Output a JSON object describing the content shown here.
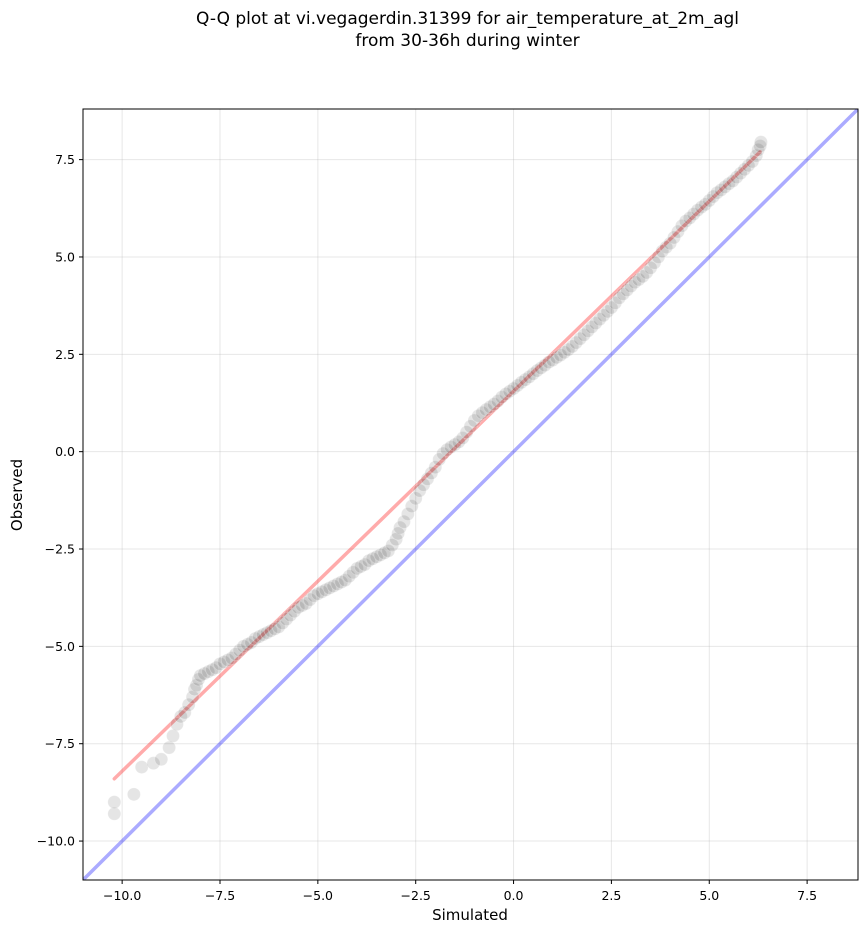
{
  "chart_data": {
    "type": "scatter",
    "title_line1": "Q-Q plot at vi.vegagerdin.31399 for air_temperature_at_2m_agl",
    "title_line2": "from 30-36h during winter",
    "xlabel": "Simulated",
    "ylabel": "Observed",
    "xlim": [
      -11.0,
      8.8
    ],
    "ylim": [
      -11.0,
      8.8
    ],
    "xticks": [
      -10.0,
      -7.5,
      -5.0,
      -2.5,
      0.0,
      2.5,
      5.0,
      7.5
    ],
    "yticks": [
      -10.0,
      -7.5,
      -5.0,
      -2.5,
      0.0,
      2.5,
      5.0,
      7.5
    ],
    "xtick_labels": [
      "−10.0",
      "−7.5",
      "−5.0",
      "−2.5",
      "0.0",
      "2.5",
      "5.0",
      "7.5"
    ],
    "ytick_labels": [
      "−10.0",
      "−7.5",
      "−5.0",
      "−2.5",
      "0.0",
      "2.5",
      "5.0",
      "7.5"
    ],
    "grid": true,
    "fit_line": {
      "color": "#ff0000",
      "x": [
        -10.2,
        6.3
      ],
      "y": [
        -8.4,
        7.7
      ]
    },
    "identity_line": {
      "color": "#0000ff",
      "x": [
        -11.0,
        8.8
      ],
      "y": [
        -11.0,
        8.8
      ]
    },
    "points_color": "#000000",
    "points": [
      [
        -10.2,
        -9.3
      ],
      [
        -10.2,
        -9.0
      ],
      [
        -9.7,
        -8.8
      ],
      [
        -9.5,
        -8.1
      ],
      [
        -9.2,
        -8.0
      ],
      [
        -9.0,
        -7.9
      ],
      [
        -8.8,
        -7.6
      ],
      [
        -8.7,
        -7.3
      ],
      [
        -8.6,
        -7.0
      ],
      [
        -8.5,
        -6.8
      ],
      [
        -8.4,
        -6.7
      ],
      [
        -8.3,
        -6.5
      ],
      [
        -8.2,
        -6.3
      ],
      [
        -8.15,
        -6.1
      ],
      [
        -8.1,
        -6.0
      ],
      [
        -8.05,
        -5.85
      ],
      [
        -8.0,
        -5.75
      ],
      [
        -7.9,
        -5.7
      ],
      [
        -7.8,
        -5.65
      ],
      [
        -7.7,
        -5.6
      ],
      [
        -7.6,
        -5.55
      ],
      [
        -7.5,
        -5.45
      ],
      [
        -7.4,
        -5.4
      ],
      [
        -7.3,
        -5.35
      ],
      [
        -7.2,
        -5.3
      ],
      [
        -7.1,
        -5.2
      ],
      [
        -7.0,
        -5.1
      ],
      [
        -6.9,
        -5.0
      ],
      [
        -6.8,
        -4.95
      ],
      [
        -6.7,
        -4.9
      ],
      [
        -6.6,
        -4.8
      ],
      [
        -6.5,
        -4.75
      ],
      [
        -6.4,
        -4.7
      ],
      [
        -6.3,
        -4.65
      ],
      [
        -6.2,
        -4.6
      ],
      [
        -6.1,
        -4.55
      ],
      [
        -6.0,
        -4.5
      ],
      [
        -5.9,
        -4.4
      ],
      [
        -5.8,
        -4.3
      ],
      [
        -5.7,
        -4.2
      ],
      [
        -5.6,
        -4.1
      ],
      [
        -5.5,
        -4.0
      ],
      [
        -5.4,
        -3.95
      ],
      [
        -5.3,
        -3.9
      ],
      [
        -5.2,
        -3.8
      ],
      [
        -5.1,
        -3.7
      ],
      [
        -5.0,
        -3.65
      ],
      [
        -4.9,
        -3.6
      ],
      [
        -4.8,
        -3.55
      ],
      [
        -4.7,
        -3.5
      ],
      [
        -4.6,
        -3.45
      ],
      [
        -4.5,
        -3.4
      ],
      [
        -4.4,
        -3.35
      ],
      [
        -4.3,
        -3.3
      ],
      [
        -4.2,
        -3.2
      ],
      [
        -4.1,
        -3.1
      ],
      [
        -4.0,
        -3.0
      ],
      [
        -3.9,
        -2.95
      ],
      [
        -3.8,
        -2.9
      ],
      [
        -3.7,
        -2.8
      ],
      [
        -3.6,
        -2.75
      ],
      [
        -3.5,
        -2.7
      ],
      [
        -3.4,
        -2.65
      ],
      [
        -3.3,
        -2.6
      ],
      [
        -3.2,
        -2.55
      ],
      [
        -3.1,
        -2.4
      ],
      [
        -3.0,
        -2.25
      ],
      [
        -2.95,
        -2.1
      ],
      [
        -2.9,
        -1.95
      ],
      [
        -2.8,
        -1.8
      ],
      [
        -2.7,
        -1.6
      ],
      [
        -2.6,
        -1.4
      ],
      [
        -2.5,
        -1.2
      ],
      [
        -2.4,
        -1.0
      ],
      [
        -2.3,
        -0.85
      ],
      [
        -2.2,
        -0.7
      ],
      [
        -2.1,
        -0.55
      ],
      [
        -2.0,
        -0.4
      ],
      [
        -1.9,
        -0.2
      ],
      [
        -1.8,
        -0.05
      ],
      [
        -1.7,
        0.05
      ],
      [
        -1.6,
        0.12
      ],
      [
        -1.5,
        0.18
      ],
      [
        -1.4,
        0.25
      ],
      [
        -1.3,
        0.35
      ],
      [
        -1.2,
        0.5
      ],
      [
        -1.1,
        0.65
      ],
      [
        -1.0,
        0.8
      ],
      [
        -0.9,
        0.92
      ],
      [
        -0.8,
        1.0
      ],
      [
        -0.7,
        1.08
      ],
      [
        -0.6,
        1.15
      ],
      [
        -0.5,
        1.22
      ],
      [
        -0.4,
        1.3
      ],
      [
        -0.3,
        1.4
      ],
      [
        -0.2,
        1.48
      ],
      [
        -0.1,
        1.55
      ],
      [
        0.0,
        1.62
      ],
      [
        0.1,
        1.7
      ],
      [
        0.2,
        1.78
      ],
      [
        0.3,
        1.85
      ],
      [
        0.4,
        1.92
      ],
      [
        0.5,
        2.0
      ],
      [
        0.6,
        2.08
      ],
      [
        0.7,
        2.15
      ],
      [
        0.8,
        2.22
      ],
      [
        0.9,
        2.3
      ],
      [
        1.0,
        2.35
      ],
      [
        1.1,
        2.42
      ],
      [
        1.2,
        2.48
      ],
      [
        1.3,
        2.55
      ],
      [
        1.4,
        2.62
      ],
      [
        1.5,
        2.7
      ],
      [
        1.6,
        2.8
      ],
      [
        1.7,
        2.9
      ],
      [
        1.8,
        3.0
      ],
      [
        1.9,
        3.1
      ],
      [
        2.0,
        3.2
      ],
      [
        2.1,
        3.3
      ],
      [
        2.2,
        3.4
      ],
      [
        2.3,
        3.5
      ],
      [
        2.4,
        3.6
      ],
      [
        2.5,
        3.7
      ],
      [
        2.6,
        3.82
      ],
      [
        2.7,
        3.95
      ],
      [
        2.8,
        4.05
      ],
      [
        2.9,
        4.15
      ],
      [
        3.0,
        4.25
      ],
      [
        3.1,
        4.35
      ],
      [
        3.2,
        4.42
      ],
      [
        3.3,
        4.5
      ],
      [
        3.4,
        4.6
      ],
      [
        3.5,
        4.72
      ],
      [
        3.6,
        4.85
      ],
      [
        3.7,
        5.0
      ],
      [
        3.8,
        5.15
      ],
      [
        3.9,
        5.25
      ],
      [
        4.0,
        5.35
      ],
      [
        4.1,
        5.5
      ],
      [
        4.2,
        5.65
      ],
      [
        4.3,
        5.8
      ],
      [
        4.4,
        5.92
      ],
      [
        4.5,
        6.0
      ],
      [
        4.6,
        6.1
      ],
      [
        4.7,
        6.2
      ],
      [
        4.8,
        6.28
      ],
      [
        4.9,
        6.35
      ],
      [
        5.0,
        6.45
      ],
      [
        5.1,
        6.55
      ],
      [
        5.2,
        6.65
      ],
      [
        5.3,
        6.72
      ],
      [
        5.4,
        6.8
      ],
      [
        5.5,
        6.88
      ],
      [
        5.6,
        6.95
      ],
      [
        5.7,
        7.05
      ],
      [
        5.8,
        7.15
      ],
      [
        5.9,
        7.25
      ],
      [
        6.0,
        7.35
      ],
      [
        6.1,
        7.45
      ],
      [
        6.2,
        7.6
      ],
      [
        6.25,
        7.75
      ],
      [
        6.3,
        7.85
      ],
      [
        6.32,
        7.95
      ]
    ]
  }
}
